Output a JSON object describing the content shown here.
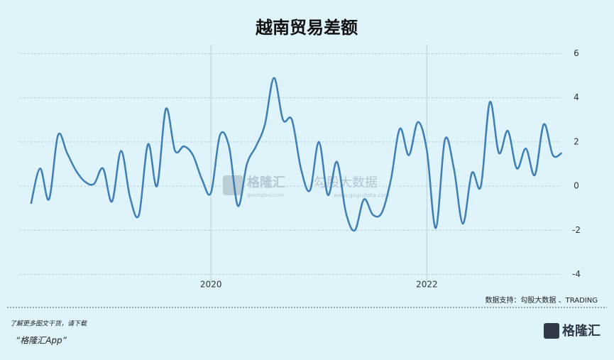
{
  "chart_data": {
    "type": "line",
    "title": "越南贸易差额",
    "x": [
      2018.333,
      2018.417,
      2018.5,
      2018.583,
      2018.667,
      2018.75,
      2018.833,
      2018.917,
      2019,
      2019.083,
      2019.167,
      2019.25,
      2019.333,
      2019.417,
      2019.5,
      2019.583,
      2019.667,
      2019.75,
      2019.833,
      2019.917,
      2020,
      2020.083,
      2020.167,
      2020.25,
      2020.333,
      2020.417,
      2020.5,
      2020.583,
      2020.667,
      2020.75,
      2020.833,
      2020.917,
      2021,
      2021.083,
      2021.167,
      2021.25,
      2021.333,
      2021.417,
      2021.5,
      2021.583,
      2021.667,
      2021.75,
      2021.833,
      2021.917,
      2022,
      2022.083,
      2022.167,
      2022.25,
      2022.333,
      2022.417,
      2022.5,
      2022.583,
      2022.667,
      2022.75,
      2022.833,
      2022.917,
      2023,
      2023.083,
      2023.167,
      2023.25
    ],
    "values": [
      -0.8,
      0.8,
      -0.6,
      2.3,
      1.5,
      0.7,
      0.2,
      0.1,
      0.8,
      -0.7,
      1.6,
      -0.5,
      -1.3,
      1.9,
      0.0,
      3.5,
      1.6,
      1.8,
      1.4,
      0.3,
      -0.3,
      2.3,
      1.8,
      -0.9,
      1.0,
      1.8,
      2.8,
      4.9,
      3.0,
      3.0,
      0.8,
      -0.2,
      2.0,
      -0.4,
      1.1,
      -1.2,
      -2.0,
      -0.6,
      -1.3,
      -1.2,
      0.3,
      2.6,
      1.4,
      2.9,
      1.6,
      -1.9,
      2.1,
      0.8,
      -1.7,
      0.6,
      0.0,
      3.8,
      1.5,
      2.5,
      0.8,
      1.7,
      0.5,
      2.8,
      1.4,
      1.5
    ],
    "color": "#3d7fb5",
    "xlim": [
      2018.23,
      2023.24
    ],
    "xticks": [
      2020,
      2022
    ],
    "ylim": [
      -4.4,
      6.4
    ],
    "yticks": [
      -4,
      -2,
      0,
      2,
      4,
      6
    ],
    "grid": true,
    "source": "数据支持：勾股大数据 、TRADING"
  },
  "footer": {
    "line1": "了解更多图文干货，请下载",
    "line2": "“格隆汇App”",
    "logo": "格隆汇"
  },
  "watermark": {
    "brand": "格隆汇",
    "brand_url": "gelonghui.com",
    "partner": "勾股大数据",
    "partner_url": "www.gogudata.com"
  }
}
